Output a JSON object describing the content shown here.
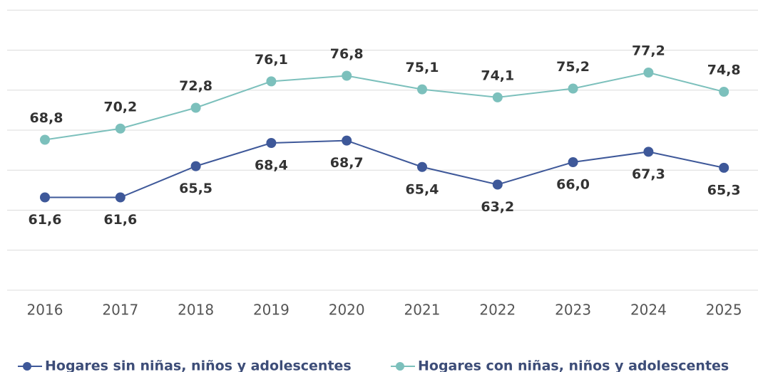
{
  "chart_data": {
    "type": "line",
    "categories": [
      "2016",
      "2017",
      "2018",
      "2019",
      "2020",
      "2021",
      "2022",
      "2023",
      "2024",
      "2025"
    ],
    "series": [
      {
        "name": "Hogares sin niñas, niños y adolescentes",
        "color": "#3e5899",
        "values": [
          61.6,
          61.6,
          65.5,
          68.4,
          68.7,
          65.4,
          63.2,
          66.0,
          67.3,
          65.3
        ],
        "value_labels": [
          "61,6",
          "61,6",
          "65,5",
          "68,4",
          "68,7",
          "65,4",
          "63,2",
          "66,0",
          "67,3",
          "65,3"
        ]
      },
      {
        "name": "Hogares con niñas, niños y adolescentes",
        "color": "#7cc0bc",
        "values": [
          68.8,
          70.2,
          72.8,
          76.1,
          76.8,
          75.1,
          74.1,
          75.2,
          77.2,
          74.8
        ],
        "value_labels": [
          "68,8",
          "70,2",
          "72,8",
          "76,1",
          "76,8",
          "75,1",
          "74,1",
          "75,2",
          "77,2",
          "74,8"
        ]
      }
    ],
    "ylim": [
      50,
      85
    ],
    "yticks": [
      50,
      55,
      60,
      65,
      70,
      75,
      80,
      85
    ],
    "grid": true,
    "legend": "bottom"
  }
}
